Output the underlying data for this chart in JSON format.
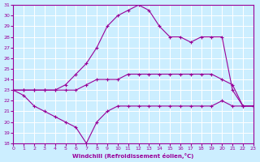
{
  "xlabel": "Windchill (Refroidissement éolien,°C)",
  "bg_color": "#cceeff",
  "line_color": "#990099",
  "grid_color": "#ffffff",
  "xlim": [
    0,
    23
  ],
  "ylim": [
    18,
    31
  ],
  "xticks": [
    0,
    1,
    2,
    3,
    4,
    5,
    6,
    7,
    8,
    9,
    10,
    11,
    12,
    13,
    14,
    15,
    16,
    17,
    18,
    19,
    20,
    21,
    22,
    23
  ],
  "yticks": [
    18,
    19,
    20,
    21,
    22,
    23,
    24,
    25,
    26,
    27,
    28,
    29,
    30,
    31
  ],
  "series": [
    {
      "x": [
        0,
        1,
        2,
        3,
        4,
        5,
        6,
        7,
        8,
        9,
        10,
        11,
        12,
        13,
        14,
        15,
        16,
        17,
        18,
        19,
        20,
        21,
        22,
        23
      ],
      "y": [
        23.0,
        23.0,
        23.0,
        23.0,
        23.0,
        23.5,
        24.5,
        25.5,
        27.0,
        29.0,
        30.0,
        30.5,
        31.0,
        30.5,
        29.0,
        28.0,
        28.0,
        27.5,
        28.0,
        28.0,
        28.0,
        23.0,
        21.5,
        21.5
      ]
    },
    {
      "x": [
        0,
        1,
        2,
        3,
        4,
        5,
        6,
        7,
        8,
        9,
        10,
        11,
        12,
        13,
        14,
        15,
        16,
        17,
        18,
        19,
        20,
        21,
        22,
        23
      ],
      "y": [
        23.0,
        23.0,
        23.0,
        23.0,
        23.0,
        23.0,
        23.0,
        23.5,
        24.0,
        24.0,
        24.0,
        24.5,
        24.5,
        24.5,
        24.5,
        24.5,
        24.5,
        24.5,
        24.5,
        24.5,
        24.0,
        23.5,
        21.5,
        21.5
      ]
    },
    {
      "x": [
        0,
        1,
        2,
        3,
        4,
        5,
        6,
        7,
        8,
        9,
        10,
        11,
        12,
        13,
        14,
        15,
        16,
        17,
        18,
        19,
        20,
        21,
        22,
        23
      ],
      "y": [
        23.0,
        22.5,
        21.5,
        21.0,
        20.5,
        20.0,
        19.5,
        18.0,
        20.0,
        21.0,
        21.5,
        21.5,
        21.5,
        21.5,
        21.5,
        21.5,
        21.5,
        21.5,
        21.5,
        21.5,
        22.0,
        21.5,
        21.5,
        21.5
      ]
    }
  ]
}
